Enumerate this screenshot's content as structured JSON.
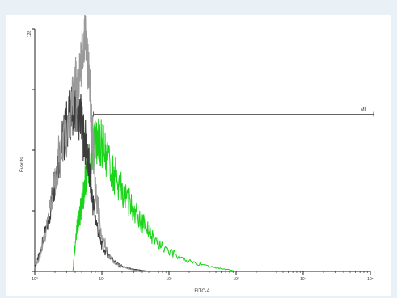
{
  "chart_data": {
    "type": "line",
    "xlabel": "FITC-A",
    "ylabel": "Events",
    "xscale": "log",
    "xlim": [
      1,
      100000
    ],
    "ylim": [
      0,
      128
    ],
    "y_tick_top_label": "128",
    "x_tick_labels": [
      "10⁰",
      "10¹",
      "10²",
      "10³",
      "10⁴",
      "10⁵"
    ],
    "x_tick_values": [
      1,
      10,
      100,
      1000,
      10000,
      100000
    ],
    "grid": false,
    "marker": {
      "label": "M1",
      "x_start": 7.5,
      "x_end": 100000,
      "y": 83
    },
    "series": [
      {
        "color": "#3c3c3c",
        "x": [
          1,
          1.1,
          1.2,
          1.3,
          1.5,
          1.7,
          1.9,
          2.1,
          2.3,
          2.6,
          2.8,
          3.0,
          3.3,
          3.6,
          3.9,
          4.2,
          4.5,
          4.8,
          5.1,
          5.5,
          6.0,
          6.5,
          7.0,
          7.6,
          8.5,
          9.5,
          11,
          13,
          15,
          17,
          19,
          22,
          26,
          30,
          36,
          42,
          50
        ],
        "values": [
          2,
          6,
          10,
          15,
          22,
          32,
          44,
          55,
          62,
          68,
          72,
          78,
          82,
          86,
          84,
          88,
          80,
          86,
          74,
          70,
          62,
          52,
          42,
          33,
          24,
          16,
          11,
          8,
          6,
          4,
          3,
          2,
          1.5,
          1,
          0.7,
          0.4,
          0
        ]
      },
      {
        "color": "#9a9a9a",
        "x": [
          1,
          1.2,
          1.4,
          1.7,
          2.0,
          2.3,
          2.6,
          2.9,
          3.2,
          3.5,
          3.8,
          4.1,
          4.4,
          4.7,
          5.0,
          5.3,
          5.6,
          5.9,
          6.2,
          6.6,
          7.0,
          7.4,
          7.8,
          8.3,
          9.0,
          10,
          11.5,
          13,
          15,
          18,
          22,
          28,
          35
        ],
        "values": [
          2,
          8,
          18,
          34,
          50,
          60,
          66,
          72,
          78,
          86,
          92,
          100,
          95,
          104,
          112,
          120,
          128,
          118,
          108,
          96,
          82,
          66,
          52,
          40,
          29,
          20,
          13,
          8,
          5,
          3,
          2,
          1,
          0
        ]
      },
      {
        "color": "#19d419",
        "x": [
          3.7,
          3.9,
          4.1,
          4.3,
          4.6,
          4.9,
          5.2,
          5.5,
          5.8,
          6.2,
          6.6,
          7.0,
          7.5,
          8.0,
          8.6,
          9.3,
          10,
          11,
          12,
          13.5,
          15,
          17,
          19,
          22,
          26,
          30,
          36,
          42,
          50,
          60,
          75,
          95,
          120,
          160,
          220,
          300,
          420,
          600,
          800,
          1000
        ],
        "values": [
          0,
          10,
          18,
          24,
          28,
          33,
          38,
          44,
          50,
          56,
          58,
          62,
          66,
          68,
          70,
          68,
          66,
          63,
          60,
          56,
          52,
          49,
          45,
          40,
          36,
          32,
          28,
          25,
          21,
          17,
          14,
          11,
          9,
          7,
          5,
          3.5,
          2.5,
          1.5,
          0.8,
          0
        ]
      }
    ]
  }
}
